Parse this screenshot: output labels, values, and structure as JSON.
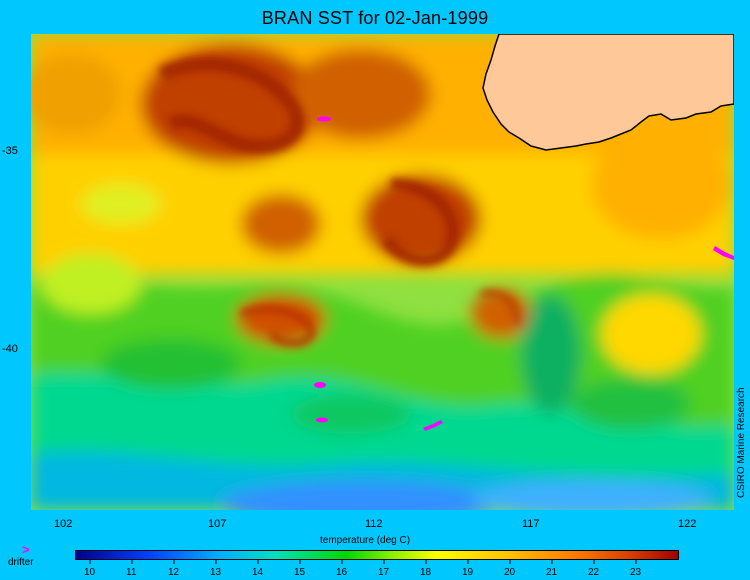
{
  "title": "BRAN SST for 02-Jan-1999",
  "y_ticks": [
    "-35",
    "-40"
  ],
  "x_ticks": [
    "102",
    "107",
    "112",
    "117",
    "122"
  ],
  "x_axis_label": "temperature (deg C)",
  "credit": "CSIRO Marine Research",
  "legend": {
    "symbol": ">",
    "label": "drifter",
    "symbol_color": "#ff00ff"
  },
  "colorbar": {
    "ticks": [
      "10",
      "11",
      "12",
      "13",
      "14",
      "15",
      "16",
      "17",
      "18",
      "19",
      "20",
      "21",
      "22",
      "23"
    ],
    "colors": [
      "#00008b",
      "#0040ff",
      "#00b0ff",
      "#00e0c0",
      "#00d800",
      "#80f000",
      "#ffff00",
      "#ffc000",
      "#ff8000",
      "#d84000",
      "#a00000"
    ]
  },
  "colors": {
    "background": "#00c8ff",
    "land": "#ffc898",
    "coast": "#000000",
    "drifter": "#ff00ff"
  }
}
